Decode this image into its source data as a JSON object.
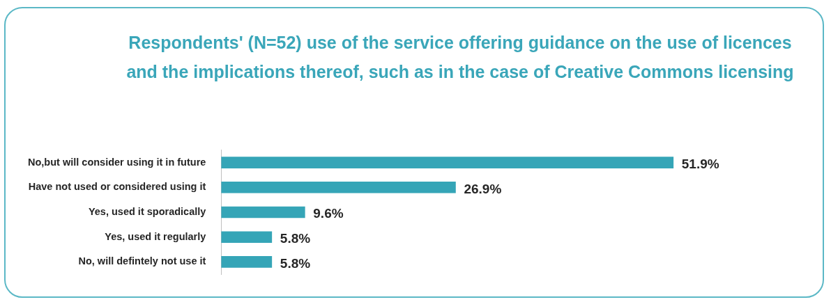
{
  "chart_data": {
    "type": "bar",
    "orientation": "horizontal",
    "title": "Respondents' (N=52) use of the service offering guidance on the use of licences and the implications thereof, such as in the case of Creative Commons licensing",
    "categories": [
      "No,but will consider using it in future",
      "Have not used or considered using it",
      "Yes, used it sporadically",
      "Yes, used it regularly",
      "No, will defintely not use it"
    ],
    "values": [
      51.9,
      26.9,
      9.6,
      5.8,
      5.8
    ],
    "color": "#35a5b7",
    "value_labels": [
      "51.9%",
      "26.9%",
      "9.6%",
      "5.8%",
      "5.8%"
    ],
    "grid": false,
    "legend": false
  }
}
